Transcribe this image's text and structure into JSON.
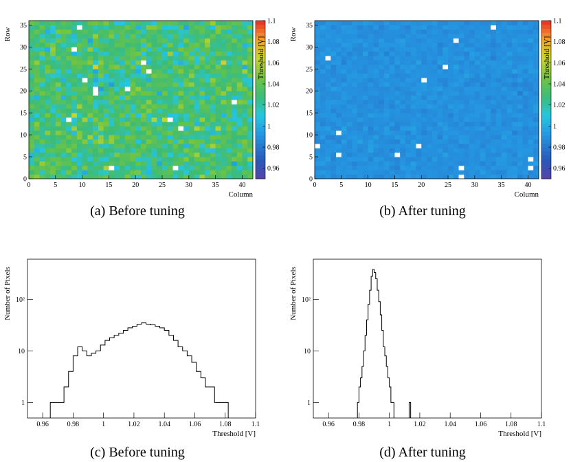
{
  "captions": {
    "a": "(a) Before tuning",
    "b": "(b) After tuning",
    "c": "(c) Before tuning",
    "d": "(d) After tuning"
  },
  "chart_data": [
    {
      "type": "heatmap",
      "panel": "a",
      "xlabel": "Column",
      "ylabel": "Row",
      "zlabel": "Threshold [V]",
      "xlim": [
        0,
        42
      ],
      "ylim": [
        0,
        36
      ],
      "zlim": [
        0.95,
        1.1
      ],
      "xticks": [
        0,
        5,
        10,
        15,
        20,
        25,
        30,
        35,
        40
      ],
      "yticks": [
        0,
        5,
        10,
        15,
        20,
        25,
        30,
        35
      ],
      "zticks": [
        0.96,
        0.98,
        1,
        1.02,
        1.04,
        1.06,
        1.08,
        1.1
      ],
      "grid_size": [
        42,
        36
      ],
      "typical_threshold": 1.03,
      "threshold_spread": 0.02
    },
    {
      "type": "heatmap",
      "panel": "b",
      "xlabel": "Column",
      "ylabel": "Row",
      "zlabel": "Threshold [V]",
      "xlim": [
        0,
        42
      ],
      "ylim": [
        0,
        36
      ],
      "zlim": [
        0.95,
        1.1
      ],
      "xticks": [
        0,
        5,
        10,
        15,
        20,
        25,
        30,
        35,
        40
      ],
      "yticks": [
        0,
        5,
        10,
        15,
        20,
        25,
        30,
        35
      ],
      "zticks": [
        0.96,
        0.98,
        1,
        1.02,
        1.04,
        1.06,
        1.08,
        1.1
      ],
      "grid_size": [
        42,
        36
      ],
      "typical_threshold": 0.99,
      "threshold_spread": 0.004
    },
    {
      "type": "line",
      "panel": "c",
      "xlabel": "Threshold [V]",
      "ylabel": "Number of Pixels",
      "xlim": [
        0.95,
        1.1
      ],
      "ylim": [
        0.5,
        600
      ],
      "log_y": true,
      "xticks": [
        0.96,
        0.98,
        1,
        1.02,
        1.04,
        1.06,
        1.08,
        1.1
      ],
      "yticks": [
        1,
        10,
        100
      ],
      "ytick_labels": [
        "1",
        "10",
        "10²"
      ],
      "x": [
        0.9665,
        0.9695,
        0.9725,
        0.9755,
        0.9785,
        0.9815,
        0.9845,
        0.9875,
        0.9905,
        0.9935,
        0.9965,
        0.9995,
        1.0025,
        1.0055,
        1.0085,
        1.0115,
        1.0145,
        1.0175,
        1.0205,
        1.0235,
        1.0265,
        1.0295,
        1.0325,
        1.0355,
        1.0385,
        1.0415,
        1.0445,
        1.0475,
        1.0505,
        1.0535,
        1.0565,
        1.0595,
        1.0625,
        1.0655,
        1.0685,
        1.0715,
        1.0745,
        1.0775,
        1.0805
      ],
      "y": [
        1,
        1,
        1,
        2,
        4,
        8,
        12,
        10,
        8,
        9,
        10,
        13,
        16,
        18,
        20,
        22,
        25,
        28,
        30,
        33,
        35,
        33,
        32,
        30,
        28,
        25,
        20,
        16,
        12,
        10,
        8,
        6,
        4,
        3,
        2,
        2,
        1,
        1,
        1
      ]
    },
    {
      "type": "line",
      "panel": "d",
      "xlabel": "Threshold [V]",
      "ylabel": "Number of Pixels",
      "xlim": [
        0.95,
        1.1
      ],
      "ylim": [
        0.5,
        600
      ],
      "log_y": true,
      "xticks": [
        0.96,
        0.98,
        1,
        1.02,
        1.04,
        1.06,
        1.08,
        1.1
      ],
      "yticks": [
        1,
        10,
        100
      ],
      "ytick_labels": [
        "1",
        "10",
        "10²"
      ],
      "x": [
        0.9795,
        0.9805,
        0.9815,
        0.9825,
        0.9835,
        0.9845,
        0.9855,
        0.9865,
        0.9875,
        0.9885,
        0.9895,
        0.9905,
        0.9915,
        0.9925,
        0.9935,
        0.9945,
        0.9955,
        0.9965,
        0.9975,
        0.9985,
        0.9995,
        1.0005,
        1.0015,
        1.0025,
        1.0135
      ],
      "y": [
        1,
        2,
        3,
        5,
        10,
        20,
        40,
        80,
        150,
        280,
        380,
        330,
        250,
        150,
        90,
        50,
        25,
        12,
        8,
        5,
        3,
        2,
        1,
        1,
        1
      ]
    }
  ]
}
